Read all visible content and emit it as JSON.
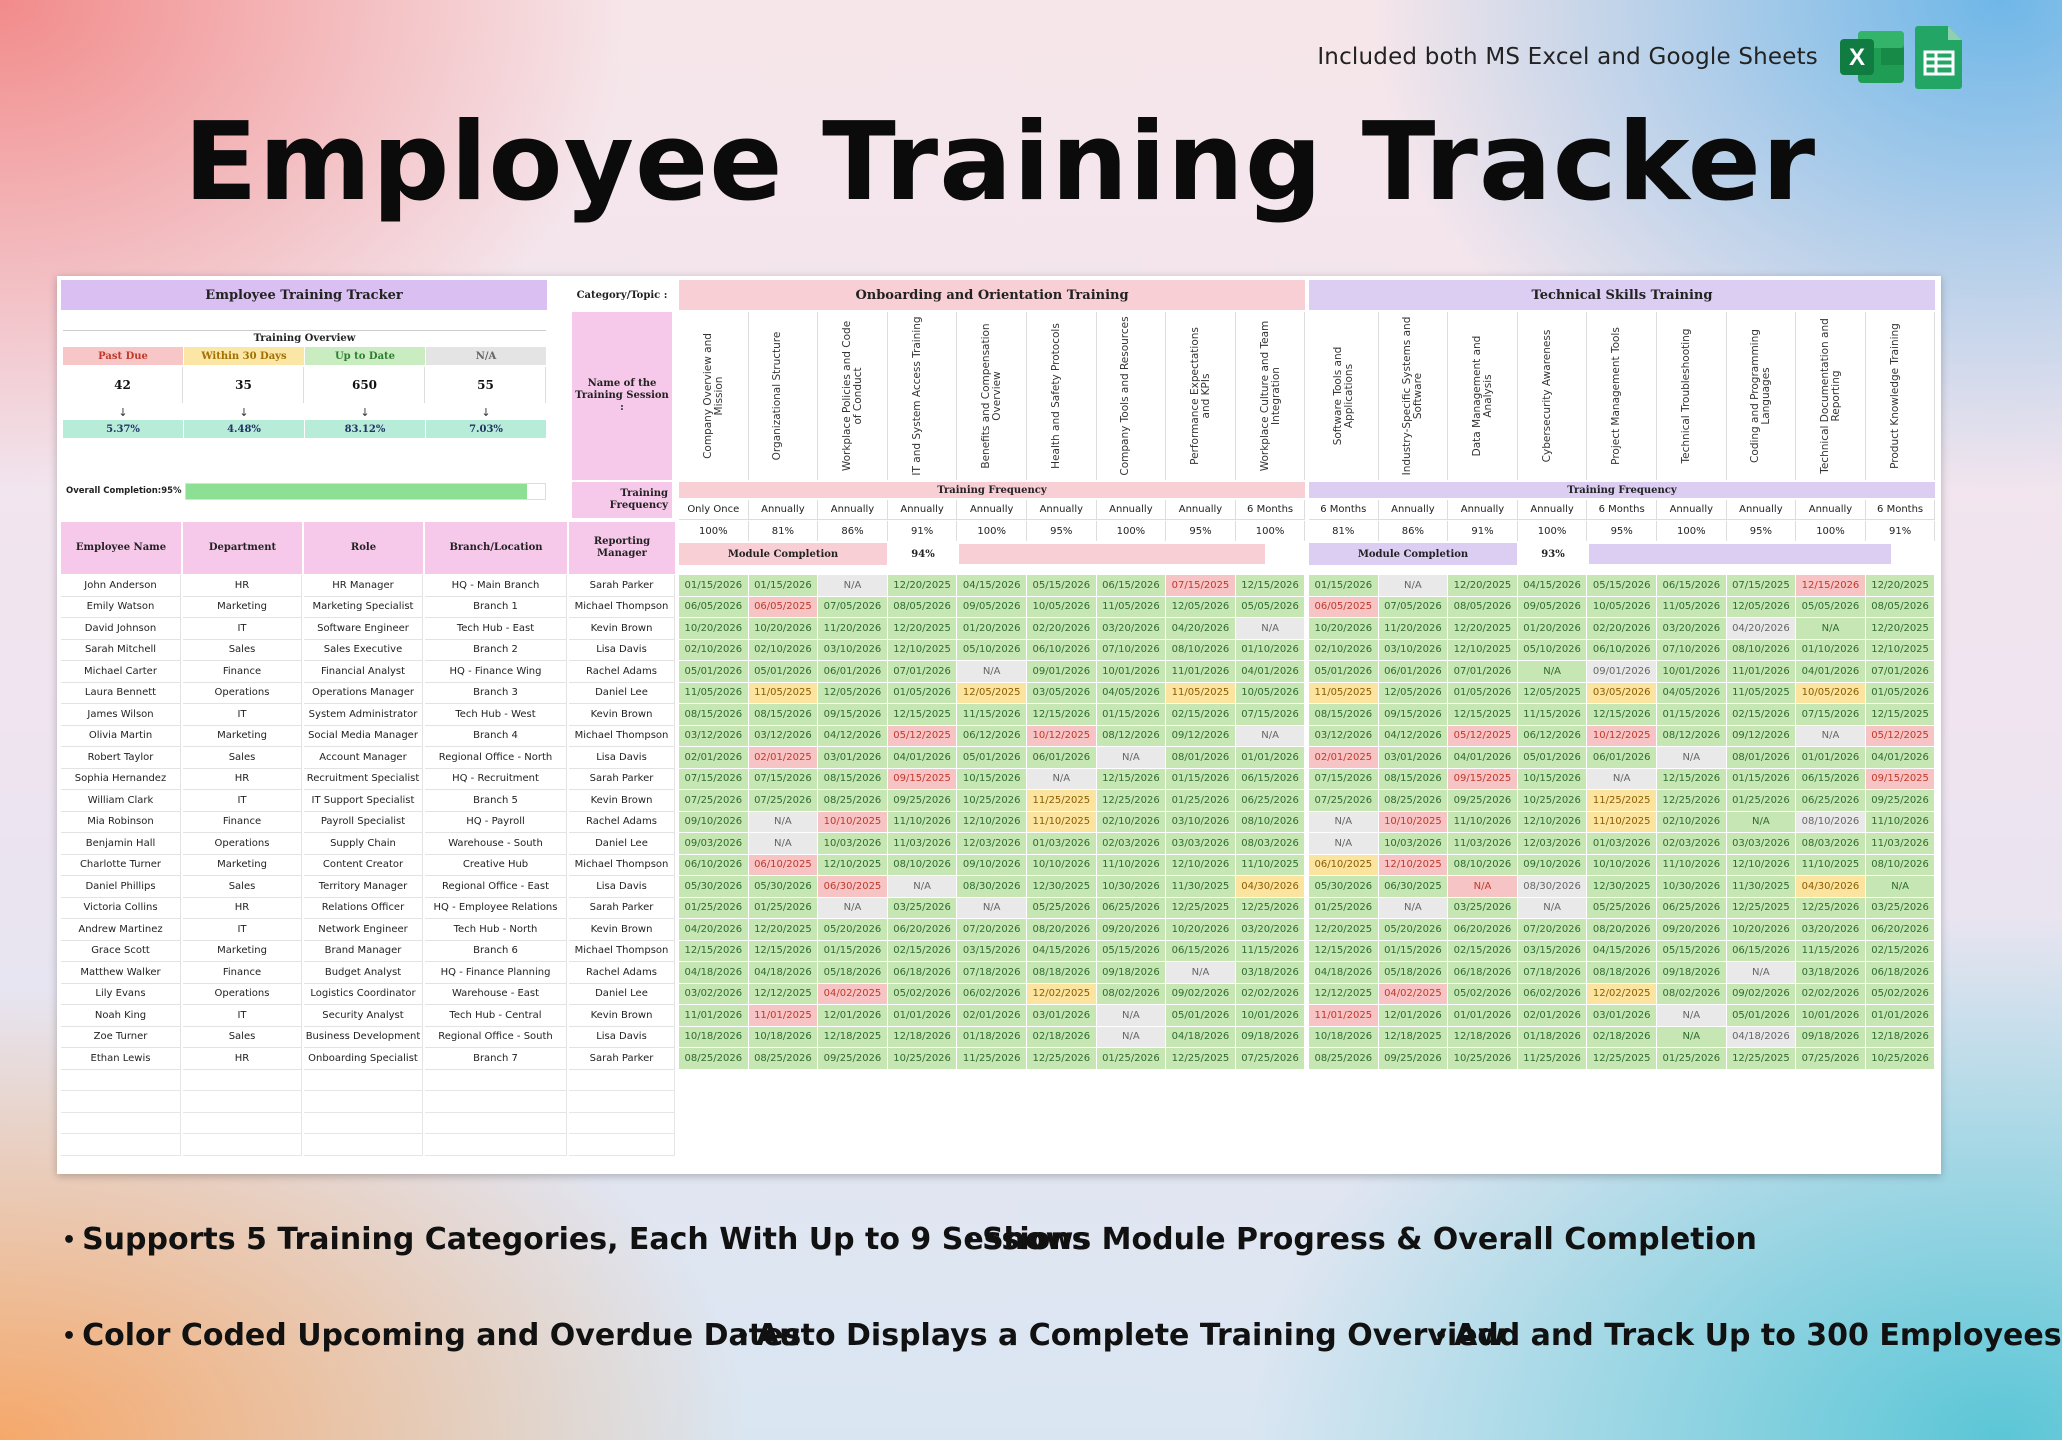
{
  "header": {
    "note": "Included both MS Excel and Google Sheets",
    "title": "Employee Training Tracker",
    "excel_icon_letter": "X"
  },
  "sheet": {
    "title": "Employee Training Tracker",
    "overview_title": "Training Overview",
    "overview": [
      {
        "label": "Past Due",
        "count": "42",
        "pct": "5.37%",
        "color": "#f7c6c6",
        "text": "#c0392b"
      },
      {
        "label": "Within 30 Days",
        "count": "35",
        "pct": "4.48%",
        "color": "#fbe6a6",
        "text": "#a07000"
      },
      {
        "label": "Up to Date",
        "count": "650",
        "pct": "83.12%",
        "color": "#c9ecc1",
        "text": "#2f7d32"
      },
      {
        "label": "N/A",
        "count": "55",
        "pct": "7.03%",
        "color": "#e4e4e4",
        "text": "#666"
      }
    ],
    "arrow": "↓",
    "overall_label": "Overall Completion:",
    "overall_pct": "95%",
    "overall_value": 0.95,
    "category_label": "Category/Topic :",
    "session_label": "Name of the Training Session :",
    "frequency_label": "Training Frequency",
    "employee_headers": [
      "Employee Name",
      "Department",
      "Role",
      "Branch/Location",
      "Reporting Manager"
    ],
    "categories": [
      {
        "name": "Onboarding and Orientation Training",
        "color": "#f9cfd6",
        "freq_title": "Training Frequency",
        "module_label": "Module Completion",
        "module_pct": "94%",
        "module_value": 0.94,
        "sessions": [
          "Company Overview and Mission",
          "Organizational Structure",
          "Workplace Policies and Code of Conduct",
          "IT and System Access Training",
          "Benefits and Compensation Overview",
          "Health and Safety Protocols",
          "Company Tools and Resources",
          "Performance Expectations and KPIs",
          "Workplace Culture and Team Integration"
        ],
        "frequency": [
          "Only Once",
          "Annually",
          "Annually",
          "Annually",
          "Annually",
          "Annually",
          "Annually",
          "Annually",
          "6 Months"
        ],
        "completion": [
          "100%",
          "81%",
          "86%",
          "91%",
          "100%",
          "95%",
          "100%",
          "95%",
          "100%"
        ]
      },
      {
        "name": "Technical Skills Training",
        "color": "#dccdf3",
        "freq_title": "Training Frequency",
        "module_label": "Module Completion",
        "module_pct": "93%",
        "module_value": 0.93,
        "sessions": [
          "Software Tools and Applications",
          "Industry-Specific Systems and Software",
          "Data Management and Analysis",
          "Cybersecurity Awareness",
          "Project Management Tools",
          "Technical Troubleshooting",
          "Coding and Programming Languages",
          "Technical Documentation and Reporting",
          "Product Knowledge Training"
        ],
        "frequency": [
          "6 Months",
          "Annually",
          "Annually",
          "Annually",
          "6 Months",
          "Annually",
          "Annually",
          "Annually",
          "6 Months"
        ],
        "completion": [
          "81%",
          "86%",
          "91%",
          "100%",
          "95%",
          "100%",
          "95%",
          "100%",
          "91%"
        ]
      }
    ],
    "status_colors": {
      "g": "#c6e6b3",
      "r": "#f6c4c4",
      "y": "#fbe3a0",
      "n": "#e9e9e9"
    },
    "employees": [
      {
        "name": "John Anderson",
        "dept": "HR",
        "role": "HR Manager",
        "branch": "HQ - Main Branch",
        "manager": "Sarah Parker",
        "dates": [
          "01/15/2026",
          "01/15/2026",
          "N/A",
          "12/20/2025",
          "04/15/2026",
          "05/15/2026",
          "06/15/2026",
          "07/15/2025",
          "12/15/2026",
          "01/15/2026",
          "N/A",
          "12/20/2025",
          "04/15/2026",
          "05/15/2026",
          "06/15/2026",
          "07/15/2025",
          "12/15/2026",
          "12/20/2025"
        ],
        "status": "ggnggggrgg ngggggrgg"
      },
      {
        "name": "Emily Watson",
        "dept": "Marketing",
        "role": "Marketing Specialist",
        "branch": "Branch 1",
        "manager": "Michael Thompson",
        "dates": [
          "06/05/2026",
          "06/05/2025",
          "07/05/2026",
          "08/05/2026",
          "09/05/2026",
          "10/05/2026",
          "11/05/2026",
          "12/05/2026",
          "05/05/2026",
          "06/05/2025",
          "07/05/2026",
          "08/05/2026",
          "09/05/2026",
          "10/05/2026",
          "11/05/2026",
          "12/05/2026",
          "05/05/2026",
          "08/05/2026"
        ],
        "status": "grggggggg rgggggggg"
      },
      {
        "name": "David Johnson",
        "dept": "IT",
        "role": "Software Engineer",
        "branch": "Tech Hub - East",
        "manager": "Kevin Brown",
        "dates": [
          "10/20/2026",
          "10/20/2026",
          "11/20/2026",
          "12/20/2025",
          "01/20/2026",
          "02/20/2026",
          "03/20/2026",
          "04/20/2026",
          "N/A",
          "10/20/2026",
          "11/20/2026",
          "12/20/2025",
          "01/20/2026",
          "02/20/2026",
          "03/20/2026",
          "04/20/2026",
          "N/A",
          "12/20/2025"
        ],
        "status": "ggggggggn ggggggngg"
      },
      {
        "name": "Sarah Mitchell",
        "dept": "Sales",
        "role": "Sales Executive",
        "branch": "Branch 2",
        "manager": "Lisa Davis",
        "dates": [
          "02/10/2026",
          "02/10/2026",
          "03/10/2026",
          "12/10/2025",
          "05/10/2026",
          "06/10/2026",
          "07/10/2026",
          "08/10/2026",
          "01/10/2026",
          "02/10/2026",
          "03/10/2026",
          "12/10/2025",
          "05/10/2026",
          "06/10/2026",
          "07/10/2026",
          "08/10/2026",
          "01/10/2026",
          "12/10/2025"
        ],
        "status": "ggggggggg ggggggggg"
      },
      {
        "name": "Michael Carter",
        "dept": "Finance",
        "role": "Financial Analyst",
        "branch": "HQ - Finance Wing",
        "manager": "Rachel Adams",
        "dates": [
          "05/01/2026",
          "05/01/2026",
          "06/01/2026",
          "07/01/2026",
          "N/A",
          "09/01/2026",
          "10/01/2026",
          "11/01/2026",
          "04/01/2026",
          "05/01/2026",
          "06/01/2026",
          "07/01/2026",
          "N/A",
          "09/01/2026",
          "10/01/2026",
          "11/01/2026",
          "04/01/2026",
          "07/01/2026"
        ],
        "status": "ggggnggggg gggnggggg"
      },
      {
        "name": "Laura Bennett",
        "dept": "Operations",
        "role": "Operations Manager",
        "branch": "Branch 3",
        "manager": "Daniel Lee",
        "dates": [
          "11/05/2026",
          "11/05/2025",
          "12/05/2026",
          "01/05/2026",
          "12/05/2025",
          "03/05/2026",
          "04/05/2026",
          "11/05/2025",
          "10/05/2026",
          "11/05/2025",
          "12/05/2026",
          "01/05/2026",
          "12/05/2025",
          "03/05/2026",
          "04/05/2026",
          "11/05/2025",
          "10/05/2026",
          "01/05/2026"
        ],
        "status": "gyggyggyg ygggyggyg"
      },
      {
        "name": "James Wilson",
        "dept": "IT",
        "role": "System Administrator",
        "branch": "Tech Hub - West",
        "manager": "Kevin Brown",
        "dates": [
          "08/15/2026",
          "08/15/2026",
          "09/15/2026",
          "12/15/2025",
          "11/15/2026",
          "12/15/2026",
          "01/15/2026",
          "02/15/2026",
          "07/15/2026",
          "08/15/2026",
          "09/15/2026",
          "12/15/2025",
          "11/15/2026",
          "12/15/2026",
          "01/15/2026",
          "02/15/2026",
          "07/15/2026",
          "12/15/2025"
        ],
        "status": "ggggggggg ggggggggg"
      },
      {
        "name": "Olivia Martin",
        "dept": "Marketing",
        "role": "Social Media Manager",
        "branch": "Branch 4",
        "manager": "Michael Thompson",
        "dates": [
          "03/12/2026",
          "03/12/2026",
          "04/12/2026",
          "05/12/2025",
          "06/12/2026",
          "10/12/2025",
          "08/12/2026",
          "09/12/2026",
          "N/A",
          "03/12/2026",
          "04/12/2026",
          "05/12/2025",
          "06/12/2026",
          "10/12/2025",
          "08/12/2026",
          "09/12/2026",
          "N/A",
          "05/12/2025"
        ],
        "status": "gggrgrggn ggrgrggnr"
      },
      {
        "name": "Robert Taylor",
        "dept": "Sales",
        "role": "Account Manager",
        "branch": "Regional Office - North",
        "manager": "Lisa Davis",
        "dates": [
          "02/01/2026",
          "02/01/2025",
          "03/01/2026",
          "04/01/2026",
          "05/01/2026",
          "06/01/2026",
          "N/A",
          "08/01/2026",
          "01/01/2026",
          "02/01/2025",
          "03/01/2026",
          "04/01/2026",
          "05/01/2026",
          "06/01/2026",
          "N/A",
          "08/01/2026",
          "01/01/2026",
          "04/01/2026"
        ],
        "status": "grggggngg rggggnggg"
      },
      {
        "name": "Sophia Hernandez",
        "dept": "HR",
        "role": "Recruitment Specialist",
        "branch": "HQ - Recruitment",
        "manager": "Sarah Parker",
        "dates": [
          "07/15/2026",
          "07/15/2026",
          "08/15/2026",
          "09/15/2025",
          "10/15/2026",
          "N/A",
          "12/15/2026",
          "01/15/2026",
          "06/15/2026",
          "07/15/2026",
          "08/15/2026",
          "09/15/2025",
          "10/15/2026",
          "N/A",
          "12/15/2026",
          "01/15/2026",
          "06/15/2026",
          "09/15/2025"
        ],
        "status": "gggrgnggg ggrgngggr"
      },
      {
        "name": "William Clark",
        "dept": "IT",
        "role": "IT Support Specialist",
        "branch": "Branch 5",
        "manager": "Kevin Brown",
        "dates": [
          "07/25/2026",
          "07/25/2026",
          "08/25/2026",
          "09/25/2026",
          "10/25/2026",
          "11/25/2025",
          "12/25/2026",
          "01/25/2026",
          "06/25/2026",
          "07/25/2026",
          "08/25/2026",
          "09/25/2026",
          "10/25/2026",
          "11/25/2025",
          "12/25/2026",
          "01/25/2026",
          "06/25/2026",
          "09/25/2026"
        ],
        "status": "gggggyggg ggggygggg"
      },
      {
        "name": "Mia Robinson",
        "dept": "Finance",
        "role": "Payroll Specialist",
        "branch": "HQ - Payroll",
        "manager": "Rachel Adams",
        "dates": [
          "09/10/2026",
          "N/A",
          "10/10/2025",
          "11/10/2026",
          "12/10/2026",
          "11/10/2025",
          "02/10/2026",
          "03/10/2026",
          "08/10/2026",
          "N/A",
          "10/10/2025",
          "11/10/2026",
          "12/10/2026",
          "11/10/2025",
          "02/10/2026",
          "N/A",
          "08/10/2026",
          "11/10/2026"
        ],
        "status": "gnrggyggg nrggyggng"
      },
      {
        "name": "Benjamin Hall",
        "dept": "Operations",
        "role": "Supply Chain",
        "branch": "Warehouse - South",
        "manager": "Daniel Lee",
        "dates": [
          "09/03/2026",
          "N/A",
          "10/03/2026",
          "11/03/2026",
          "12/03/2026",
          "01/03/2026",
          "02/03/2026",
          "03/03/2026",
          "08/03/2026",
          "N/A",
          "10/03/2026",
          "11/03/2026",
          "12/03/2026",
          "01/03/2026",
          "02/03/2026",
          "03/03/2026",
          "08/03/2026",
          "11/03/2026"
        ],
        "status": "gnggggggg ngggggggg"
      },
      {
        "name": "Charlotte Turner",
        "dept": "Marketing",
        "role": "Content Creator",
        "branch": "Creative Hub",
        "manager": "Michael Thompson",
        "dates": [
          "06/10/2026",
          "06/10/2025",
          "12/10/2025",
          "08/10/2026",
          "09/10/2026",
          "10/10/2026",
          "11/10/2026",
          "12/10/2026",
          "11/10/2025",
          "06/10/2025",
          "12/10/2025",
          "08/10/2026",
          "09/10/2026",
          "10/10/2026",
          "11/10/2026",
          "12/10/2026",
          "11/10/2025",
          "08/10/2026"
        ],
        "status": "grgggggggy rgggggggyg"
      },
      {
        "name": "Daniel Phillips",
        "dept": "Sales",
        "role": "Territory Manager",
        "branch": "Regional Office - East",
        "manager": "Lisa Davis",
        "dates": [
          "05/30/2026",
          "05/30/2026",
          "06/30/2025",
          "N/A",
          "08/30/2026",
          "12/30/2025",
          "10/30/2026",
          "11/30/2025",
          "04/30/2026",
          "05/30/2026",
          "06/30/2025",
          "N/A",
          "08/30/2026",
          "12/30/2025",
          "10/30/2026",
          "11/30/2025",
          "04/30/2026",
          "N/A"
        ],
        "status": "ggrnggggyg grngggygn"
      },
      {
        "name": "Victoria Collins",
        "dept": "HR",
        "role": "Relations Officer",
        "branch": "HQ - Employee Relations",
        "manager": "Sarah Parker",
        "dates": [
          "01/25/2026",
          "01/25/2026",
          "N/A",
          "03/25/2026",
          "N/A",
          "05/25/2026",
          "06/25/2026",
          "12/25/2025",
          "12/25/2026",
          "01/25/2026",
          "N/A",
          "03/25/2026",
          "N/A",
          "05/25/2026",
          "06/25/2026",
          "12/25/2025",
          "12/25/2026",
          "03/25/2026"
        ],
        "status": "ggngngggg gngngggggg"
      },
      {
        "name": "Andrew Martinez",
        "dept": "IT",
        "role": "Network Engineer",
        "branch": "Tech Hub - North",
        "manager": "Kevin Brown",
        "dates": [
          "04/20/2026",
          "12/20/2025",
          "05/20/2026",
          "06/20/2026",
          "07/20/2026",
          "08/20/2026",
          "09/20/2026",
          "10/20/2026",
          "03/20/2026",
          "12/20/2025",
          "05/20/2026",
          "06/20/2026",
          "07/20/2026",
          "08/20/2026",
          "09/20/2026",
          "10/20/2026",
          "03/20/2026",
          "06/20/2026"
        ],
        "status": "ggggggggg ggggggggg"
      },
      {
        "name": "Grace Scott",
        "dept": "Marketing",
        "role": "Brand Manager",
        "branch": "Branch 6",
        "manager": "Michael Thompson",
        "dates": [
          "12/15/2026",
          "12/15/2026",
          "01/15/2026",
          "02/15/2026",
          "03/15/2026",
          "04/15/2026",
          "05/15/2026",
          "06/15/2026",
          "11/15/2026",
          "12/15/2026",
          "01/15/2026",
          "02/15/2026",
          "03/15/2026",
          "04/15/2026",
          "05/15/2026",
          "06/15/2026",
          "11/15/2026",
          "02/15/2026"
        ],
        "status": "ggggggggg ggggggggg"
      },
      {
        "name": "Matthew Walker",
        "dept": "Finance",
        "role": "Budget Analyst",
        "branch": "HQ - Finance Planning",
        "manager": "Rachel Adams",
        "dates": [
          "04/18/2026",
          "04/18/2026",
          "05/18/2026",
          "06/18/2026",
          "07/18/2026",
          "08/18/2026",
          "09/18/2026",
          "N/A",
          "03/18/2026",
          "04/18/2026",
          "05/18/2026",
          "06/18/2026",
          "07/18/2026",
          "08/18/2026",
          "09/18/2026",
          "N/A",
          "03/18/2026",
          "06/18/2026"
        ],
        "status": "gggggggng ggggggngg"
      },
      {
        "name": "Lily Evans",
        "dept": "Operations",
        "role": "Logistics Coordinator",
        "branch": "Warehouse - East",
        "manager": "Daniel Lee",
        "dates": [
          "03/02/2026",
          "12/12/2025",
          "04/02/2025",
          "05/02/2026",
          "06/02/2026",
          "12/02/2025",
          "08/02/2026",
          "09/02/2026",
          "02/02/2026",
          "12/12/2025",
          "04/02/2025",
          "05/02/2026",
          "06/02/2026",
          "12/02/2025",
          "08/02/2026",
          "09/02/2026",
          "02/02/2026",
          "05/02/2026"
        ],
        "status": "ggrggyggg grggygggg"
      },
      {
        "name": "Noah King",
        "dept": "IT",
        "role": "Security Analyst",
        "branch": "Tech Hub - Central",
        "manager": "Kevin Brown",
        "dates": [
          "11/01/2026",
          "11/01/2025",
          "12/01/2026",
          "01/01/2026",
          "02/01/2026",
          "03/01/2026",
          "N/A",
          "05/01/2026",
          "10/01/2026",
          "11/01/2025",
          "12/01/2026",
          "01/01/2026",
          "02/01/2026",
          "03/01/2026",
          "N/A",
          "05/01/2026",
          "10/01/2026",
          "01/01/2026"
        ],
        "status": "grggggngg rggggnggg"
      },
      {
        "name": "Zoe Turner",
        "dept": "Sales",
        "role": "Business Development",
        "branch": "Regional Office - South",
        "manager": "Lisa Davis",
        "dates": [
          "10/18/2026",
          "10/18/2026",
          "12/18/2025",
          "12/18/2026",
          "01/18/2026",
          "02/18/2026",
          "N/A",
          "04/18/2026",
          "09/18/2026",
          "10/18/2026",
          "12/18/2025",
          "12/18/2026",
          "01/18/2026",
          "02/18/2026",
          "N/A",
          "04/18/2026",
          "09/18/2026",
          "12/18/2026"
        ],
        "status": "ggggggngg ggggggnggg"
      },
      {
        "name": "Ethan Lewis",
        "dept": "HR",
        "role": "Onboarding Specialist",
        "branch": "Branch 7",
        "manager": "Sarah Parker",
        "dates": [
          "08/25/2026",
          "08/25/2026",
          "09/25/2026",
          "10/25/2026",
          "11/25/2026",
          "12/25/2026",
          "01/25/2026",
          "12/25/2025",
          "07/25/2026",
          "08/25/2026",
          "09/25/2026",
          "10/25/2026",
          "11/25/2026",
          "12/25/2025",
          "01/25/2026",
          "12/25/2025",
          "07/25/2026",
          "10/25/2026"
        ],
        "status": "ggggggggg ggggggggg"
      }
    ]
  },
  "bullets": [
    "Supports 5 Training Categories, Each With Up to 9 Sessions",
    "Shows Module Progress & Overall Completion",
    "Color Coded Upcoming and Overdue Dates",
    "Auto Displays a Complete Training Overview",
    "Add and Track Up to 300 Employees"
  ]
}
